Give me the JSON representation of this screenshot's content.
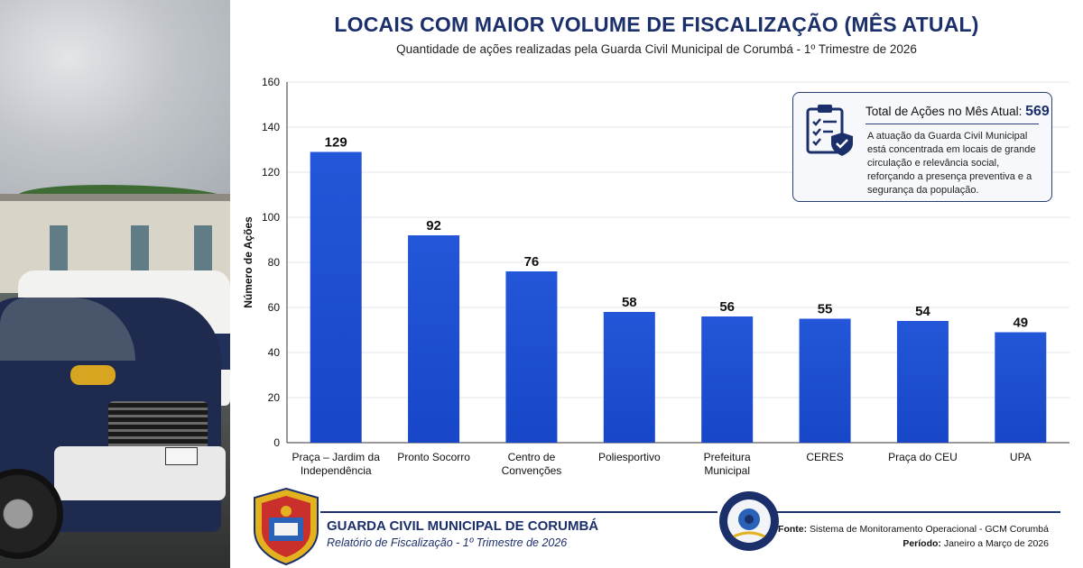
{
  "header": {
    "title": "LOCAIS COM MAIOR VOLUME DE FISCALIZAÇÃO (MÊS ATUAL)",
    "subtitle": "Quantidade de ações realizadas pela Guarda Civil Municipal de Corumbá - 1º Trimestre de 2026"
  },
  "chart_data": {
    "type": "bar",
    "ylabel": "Número de Ações",
    "xlabel": "",
    "ylim": [
      0,
      160
    ],
    "yticks": [
      0,
      20,
      40,
      60,
      80,
      100,
      120,
      140,
      160
    ],
    "grid": true,
    "bar_color": "#1747c8",
    "categories": [
      [
        "Praça – Jardim da",
        "Independência"
      ],
      [
        "Pronto Socorro"
      ],
      [
        "Centro de",
        "Convenções"
      ],
      [
        "Poliesportivo"
      ],
      [
        "Prefeitura",
        "Municipal"
      ],
      [
        "CERES"
      ],
      [
        "Praça do CEU"
      ],
      [
        "UPA"
      ]
    ],
    "values": [
      129,
      92,
      76,
      58,
      56,
      55,
      54,
      49
    ]
  },
  "info_box": {
    "label": "Total de Ações no Mês Atual:",
    "total": "569",
    "description": "A atuação da Guarda Civil Municipal está concentrada em locais de grande circulação e relevância social, reforçando a presença preventiva e a segurança da população.",
    "icon": "clipboard-shield-icon"
  },
  "footer": {
    "org_name": "GUARDA CIVIL MUNICIPAL DE CORUMBÁ",
    "report": "Relatório de Fiscalização - 1º Trimestre de 2026",
    "source_label": "Fonte:",
    "source_value": "Sistema de Monitoramento Operacional - GCM Corumbá",
    "period_label": "Período:",
    "period_value": "Janeiro a Março de 2026",
    "badge_icon": "gcm-badge-icon",
    "seal_icon": "ouvidoria-seal-icon"
  },
  "colors": {
    "navy": "#1b2f6b",
    "bar": "#1747c8",
    "gold": "#e3b21f"
  }
}
